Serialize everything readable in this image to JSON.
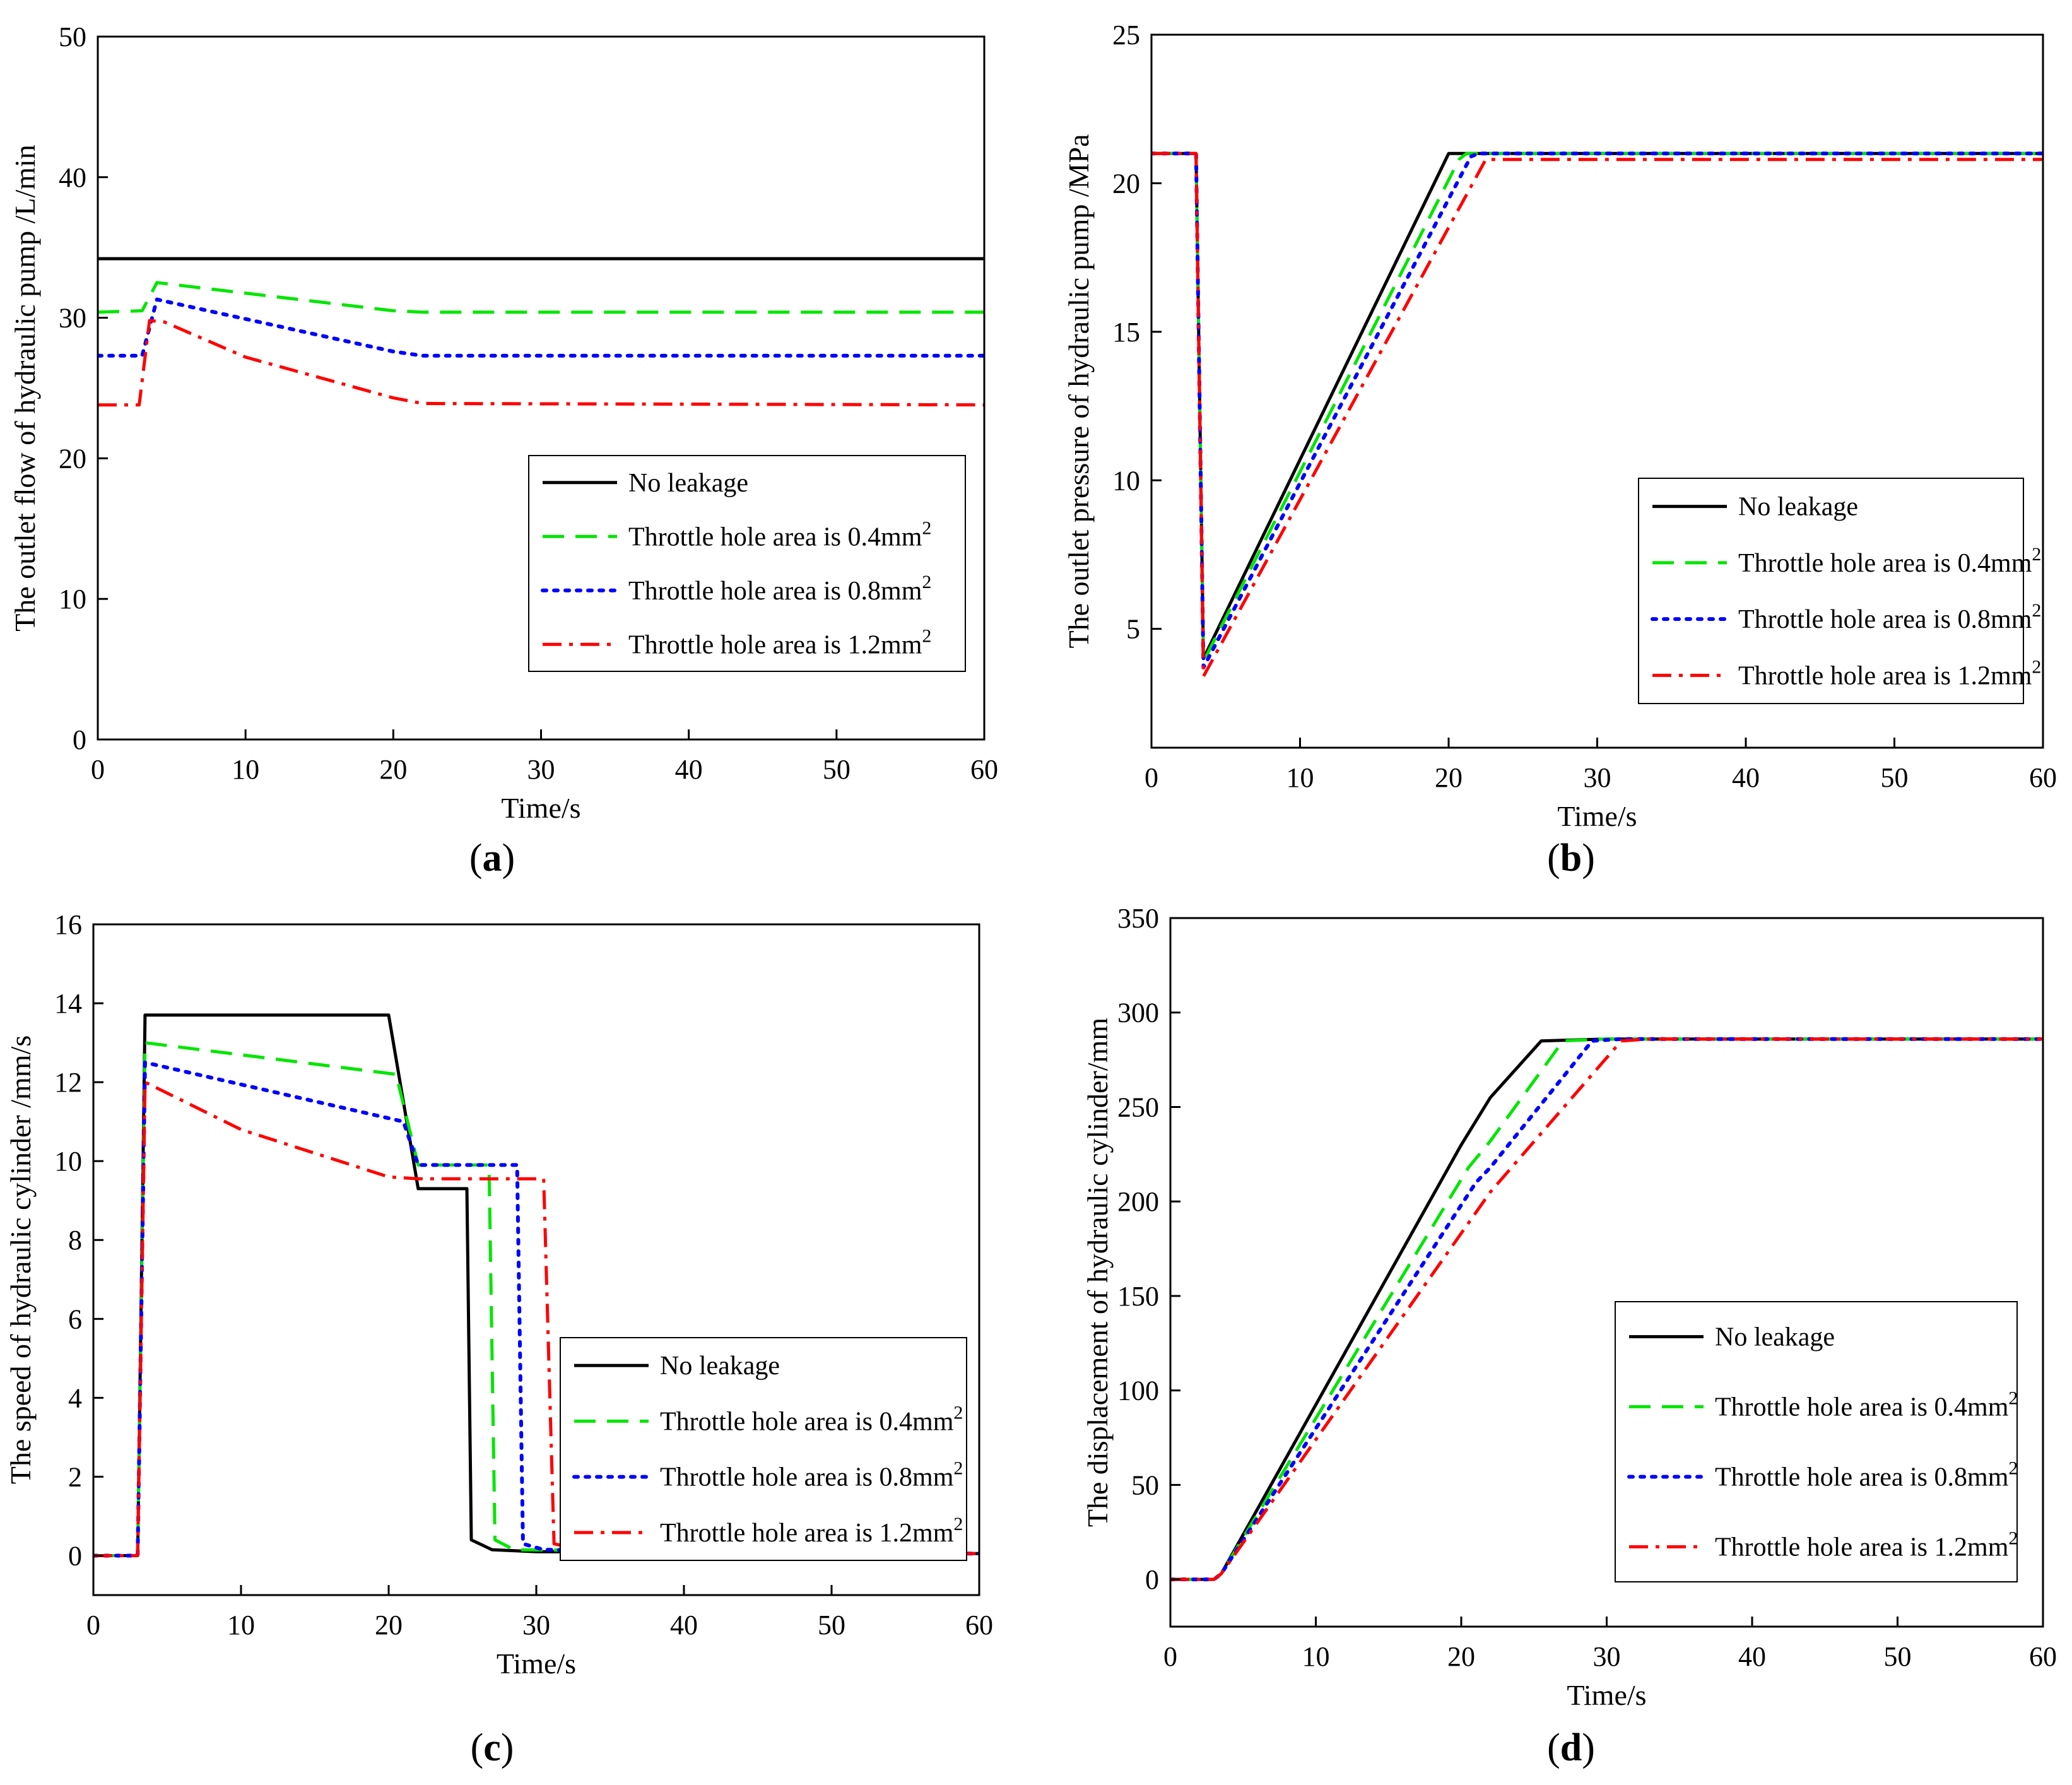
{
  "figure": {
    "colors": {
      "no_leakage": "#000000",
      "area_04": "#00e600",
      "area_08": "#0000ff",
      "area_12": "#ff0000",
      "axis": "#000000",
      "background": "#ffffff"
    }
  },
  "chart_data": [
    {
      "id": "a",
      "type": "line",
      "panel_label": "a",
      "xlabel": "Time/s",
      "ylabel": "The outlet flow of hydraulic pump /L/min",
      "xlim": [
        0,
        60
      ],
      "ylim": [
        0,
        50
      ],
      "xticks": [
        0,
        10,
        20,
        30,
        40,
        50,
        60
      ],
      "yticks": [
        0,
        10,
        20,
        30,
        40,
        50
      ],
      "legend_position": "bottom-right",
      "series": [
        {
          "name": "No leakage",
          "legend_label": "No leakage",
          "legend_sup": "",
          "style": "solid",
          "color": "#000000",
          "x": [
            0,
            60
          ],
          "y": [
            34.2,
            34.2
          ]
        },
        {
          "name": "Throttle hole area is 0.4mm²",
          "legend_label": "Throttle hole area is 0.4mm",
          "legend_sup": "2",
          "style": "dash",
          "color": "#00e600",
          "x": [
            0,
            3,
            4,
            20,
            22,
            60
          ],
          "y": [
            30.4,
            30.5,
            32.5,
            30.5,
            30.4,
            30.4
          ]
        },
        {
          "name": "Throttle hole area is 0.8mm²",
          "legend_label": "Throttle hole area is 0.8mm",
          "legend_sup": "2",
          "style": "dot",
          "color": "#0000ff",
          "x": [
            0,
            3,
            4,
            20,
            22,
            60
          ],
          "y": [
            27.3,
            27.3,
            31.3,
            27.6,
            27.3,
            27.3
          ]
        },
        {
          "name": "Throttle hole area is 1.2mm²",
          "legend_label": "Throttle hole area is 1.2mm",
          "legend_sup": "2",
          "style": "dashdot",
          "color": "#ff0000",
          "x": [
            0,
            2.8,
            3.5,
            4.5,
            10,
            20,
            22,
            60
          ],
          "y": [
            23.8,
            23.8,
            29.8,
            29.7,
            27.2,
            24.3,
            23.9,
            23.8
          ]
        }
      ]
    },
    {
      "id": "b",
      "type": "line",
      "panel_label": "b",
      "xlabel": "Time/s",
      "ylabel": "The outlet pressure of hydraulic pump /MPa",
      "xlim": [
        0,
        60
      ],
      "ylim": [
        1,
        25
      ],
      "xticks": [
        0,
        10,
        20,
        30,
        40,
        50,
        60
      ],
      "yticks": [
        5,
        10,
        15,
        20,
        25
      ],
      "legend_position": "bottom-right",
      "series": [
        {
          "name": "No leakage",
          "legend_label": "No leakage",
          "legend_sup": "",
          "style": "solid",
          "color": "#000000",
          "x": [
            0,
            3,
            3.5,
            20,
            20.5,
            60
          ],
          "y": [
            21,
            21,
            4.0,
            21,
            21,
            21
          ]
        },
        {
          "name": "Throttle hole area is 0.4mm²",
          "legend_label": "Throttle hole area is 0.4mm",
          "legend_sup": "2",
          "style": "dash",
          "color": "#00e600",
          "x": [
            0,
            3,
            3.5,
            20.7,
            21.2,
            60
          ],
          "y": [
            21,
            21,
            3.9,
            20.8,
            21,
            21
          ]
        },
        {
          "name": "Throttle hole area is 0.8mm²",
          "legend_label": "Throttle hole area is 0.8mm",
          "legend_sup": "2",
          "style": "dot",
          "color": "#0000ff",
          "x": [
            0,
            3,
            3.5,
            21.5,
            22,
            60
          ],
          "y": [
            21,
            21,
            3.7,
            20.9,
            21,
            21
          ]
        },
        {
          "name": "Throttle hole area is 1.2mm²",
          "legend_label": "Throttle hole area is 1.2mm",
          "legend_sup": "2",
          "style": "dashdot",
          "color": "#ff0000",
          "x": [
            0,
            3,
            3.5,
            22.5,
            23,
            60
          ],
          "y": [
            21,
            21,
            3.4,
            20.8,
            20.8,
            20.8
          ]
        }
      ]
    },
    {
      "id": "c",
      "type": "line",
      "panel_label": "c",
      "xlabel": "Time/s",
      "ylabel": "The speed of hydraulic cylinder /mm/s",
      "xlim": [
        0,
        60
      ],
      "ylim": [
        -1,
        16
      ],
      "xticks": [
        0,
        10,
        20,
        30,
        40,
        50,
        60
      ],
      "yticks": [
        0,
        2,
        4,
        6,
        8,
        10,
        12,
        14,
        16
      ],
      "legend_position": "bottom-right",
      "series": [
        {
          "name": "No leakage",
          "legend_label": "No leakage",
          "legend_sup": "",
          "style": "solid",
          "color": "#000000",
          "x": [
            0,
            3,
            3.5,
            20,
            22,
            25.3,
            25.6,
            27,
            30,
            60
          ],
          "y": [
            0,
            0,
            13.7,
            13.7,
            9.3,
            9.3,
            0.4,
            0.15,
            0.1,
            0.05
          ]
        },
        {
          "name": "Throttle hole area is 0.4mm²",
          "legend_label": "Throttle hole area is 0.4mm",
          "legend_sup": "2",
          "style": "dash",
          "color": "#00e600",
          "x": [
            0,
            3,
            3.5,
            20.5,
            22,
            26.8,
            27.2,
            28.5,
            60
          ],
          "y": [
            0,
            0,
            13.0,
            12.2,
            9.9,
            9.9,
            0.4,
            0.15,
            0.05
          ]
        },
        {
          "name": "Throttle hole area is 0.8mm²",
          "legend_label": "Throttle hole area is 0.8mm",
          "legend_sup": "2",
          "style": "dot",
          "color": "#0000ff",
          "x": [
            0,
            3,
            3.5,
            21,
            22,
            28.7,
            29.1,
            30.5,
            60
          ],
          "y": [
            0,
            0,
            12.5,
            11.0,
            9.9,
            9.9,
            0.3,
            0.15,
            0.05
          ]
        },
        {
          "name": "Throttle hole area is 1.2mm²",
          "legend_label": "Throttle hole area is 1.2mm",
          "legend_sup": "2",
          "style": "dashdot",
          "color": "#ff0000",
          "x": [
            0,
            3,
            3.5,
            10,
            20,
            22,
            30.5,
            31.2,
            33,
            60
          ],
          "y": [
            0,
            0,
            12.0,
            10.8,
            9.6,
            9.55,
            9.55,
            0.3,
            0.15,
            0.05
          ]
        }
      ]
    },
    {
      "id": "d",
      "type": "line",
      "panel_label": "d",
      "xlabel": "Time/s",
      "ylabel": "The displacement of hydraulic cylinder/mm",
      "xlim": [
        0,
        60
      ],
      "ylim": [
        -25,
        350
      ],
      "xticks": [
        0,
        10,
        20,
        30,
        40,
        50,
        60
      ],
      "yticks": [
        0,
        50,
        100,
        150,
        200,
        250,
        300,
        350
      ],
      "legend_position": "bottom-right",
      "series": [
        {
          "name": "No leakage",
          "legend_label": "No leakage",
          "legend_sup": "",
          "style": "solid",
          "color": "#000000",
          "x": [
            0,
            3,
            3.5,
            20,
            22,
            25.5,
            30,
            60
          ],
          "y": [
            0,
            0,
            3,
            230,
            255,
            285,
            286,
            286
          ]
        },
        {
          "name": "Throttle hole area is 0.4mm²",
          "legend_label": "Throttle hole area is 0.4mm",
          "legend_sup": "2",
          "style": "dash",
          "color": "#00e600",
          "x": [
            0,
            3,
            3.5,
            20.5,
            22,
            27,
            30,
            60
          ],
          "y": [
            0,
            0,
            3,
            218,
            232,
            285,
            286,
            286
          ]
        },
        {
          "name": "Throttle hole area is 0.8mm²",
          "legend_label": "Throttle hole area is 0.8mm",
          "legend_sup": "2",
          "style": "dot",
          "color": "#0000ff",
          "x": [
            0,
            3,
            3.5,
            21,
            22,
            29,
            31,
            60
          ],
          "y": [
            0,
            0,
            3,
            210,
            218,
            285,
            286,
            286
          ]
        },
        {
          "name": "Throttle hole area is 1.2mm²",
          "legend_label": "Throttle hole area is 1.2mm",
          "legend_sup": "2",
          "style": "dashdot",
          "color": "#ff0000",
          "x": [
            0,
            3,
            3.5,
            22,
            31,
            33,
            60
          ],
          "y": [
            0,
            0,
            3,
            205,
            285,
            286,
            286
          ]
        }
      ]
    }
  ]
}
